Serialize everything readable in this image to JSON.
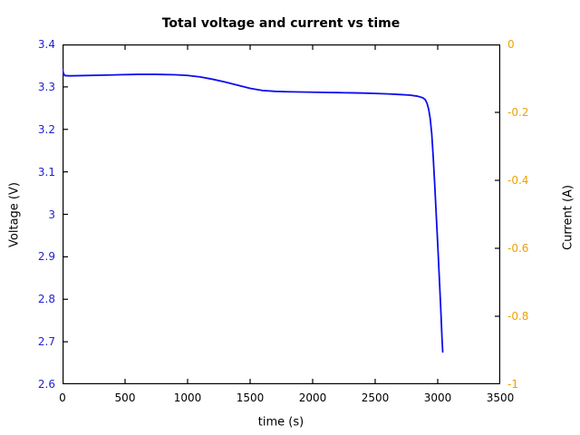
{
  "chart_data": {
    "type": "line",
    "title": "Total voltage and current vs time",
    "xlabel": "time (s)",
    "xlim": [
      0,
      3500
    ],
    "xtick_values": [
      0,
      500,
      1000,
      1500,
      2000,
      2500,
      3000,
      3500
    ],
    "xtick_labels": [
      "0",
      "500",
      "1000",
      "1500",
      "2000",
      "2500",
      "3000",
      "3500"
    ],
    "left_axis": {
      "label": "Voltage (V)",
      "lim": [
        2.6,
        3.4
      ],
      "tick_values": [
        3.4,
        3.3,
        3.2,
        3.1,
        3.0,
        2.9,
        2.8,
        2.7,
        2.6
      ],
      "tick_labels": [
        "3.4",
        "3.3",
        "3.2",
        "3.1",
        "3",
        "2.9",
        "2.8",
        "2.7",
        "2.6"
      ],
      "color": "#2222cc"
    },
    "right_axis": {
      "label": "Current (A)",
      "lim": [
        -1,
        0
      ],
      "tick_values": [
        0,
        -0.2,
        -0.4,
        -0.6,
        -0.8,
        -1
      ],
      "tick_labels": [
        "0",
        "-0.2",
        "-0.4",
        "-0.6",
        "-0.8",
        "-1"
      ],
      "color": "#f0a000"
    },
    "grid": false,
    "legend": null,
    "frame": {
      "color": "#000000",
      "tick_length": 6,
      "ticks_mirrored": true
    },
    "series": [
      {
        "name": "Total voltage",
        "axis": "left",
        "color": "#0d0dee",
        "line_width": 1.8,
        "x": [
          0,
          8,
          20,
          60,
          150,
          300,
          450,
          600,
          750,
          900,
          1000,
          1100,
          1200,
          1300,
          1400,
          1500,
          1600,
          1700,
          1800,
          1900,
          2000,
          2100,
          2200,
          2300,
          2400,
          2500,
          2600,
          2700,
          2780,
          2840,
          2880,
          2900,
          2915,
          2928,
          2940,
          2952,
          2964,
          2976,
          2988,
          3000,
          3012,
          3024,
          3034,
          3040
        ],
        "y": [
          3.341,
          3.331,
          3.3265,
          3.326,
          3.3265,
          3.3275,
          3.3285,
          3.3295,
          3.3295,
          3.3285,
          3.327,
          3.3235,
          3.318,
          3.3115,
          3.304,
          3.2965,
          3.2915,
          3.2895,
          3.2885,
          3.288,
          3.2875,
          3.287,
          3.2865,
          3.286,
          3.2855,
          3.2845,
          3.2835,
          3.282,
          3.2805,
          3.278,
          3.2745,
          3.27,
          3.261,
          3.247,
          3.225,
          3.19,
          3.135,
          3.07,
          3.0,
          2.93,
          2.855,
          2.78,
          2.71,
          2.676
        ]
      }
    ]
  },
  "layout_note": "single line chart, boxed axes, inward ticks on all four sides"
}
